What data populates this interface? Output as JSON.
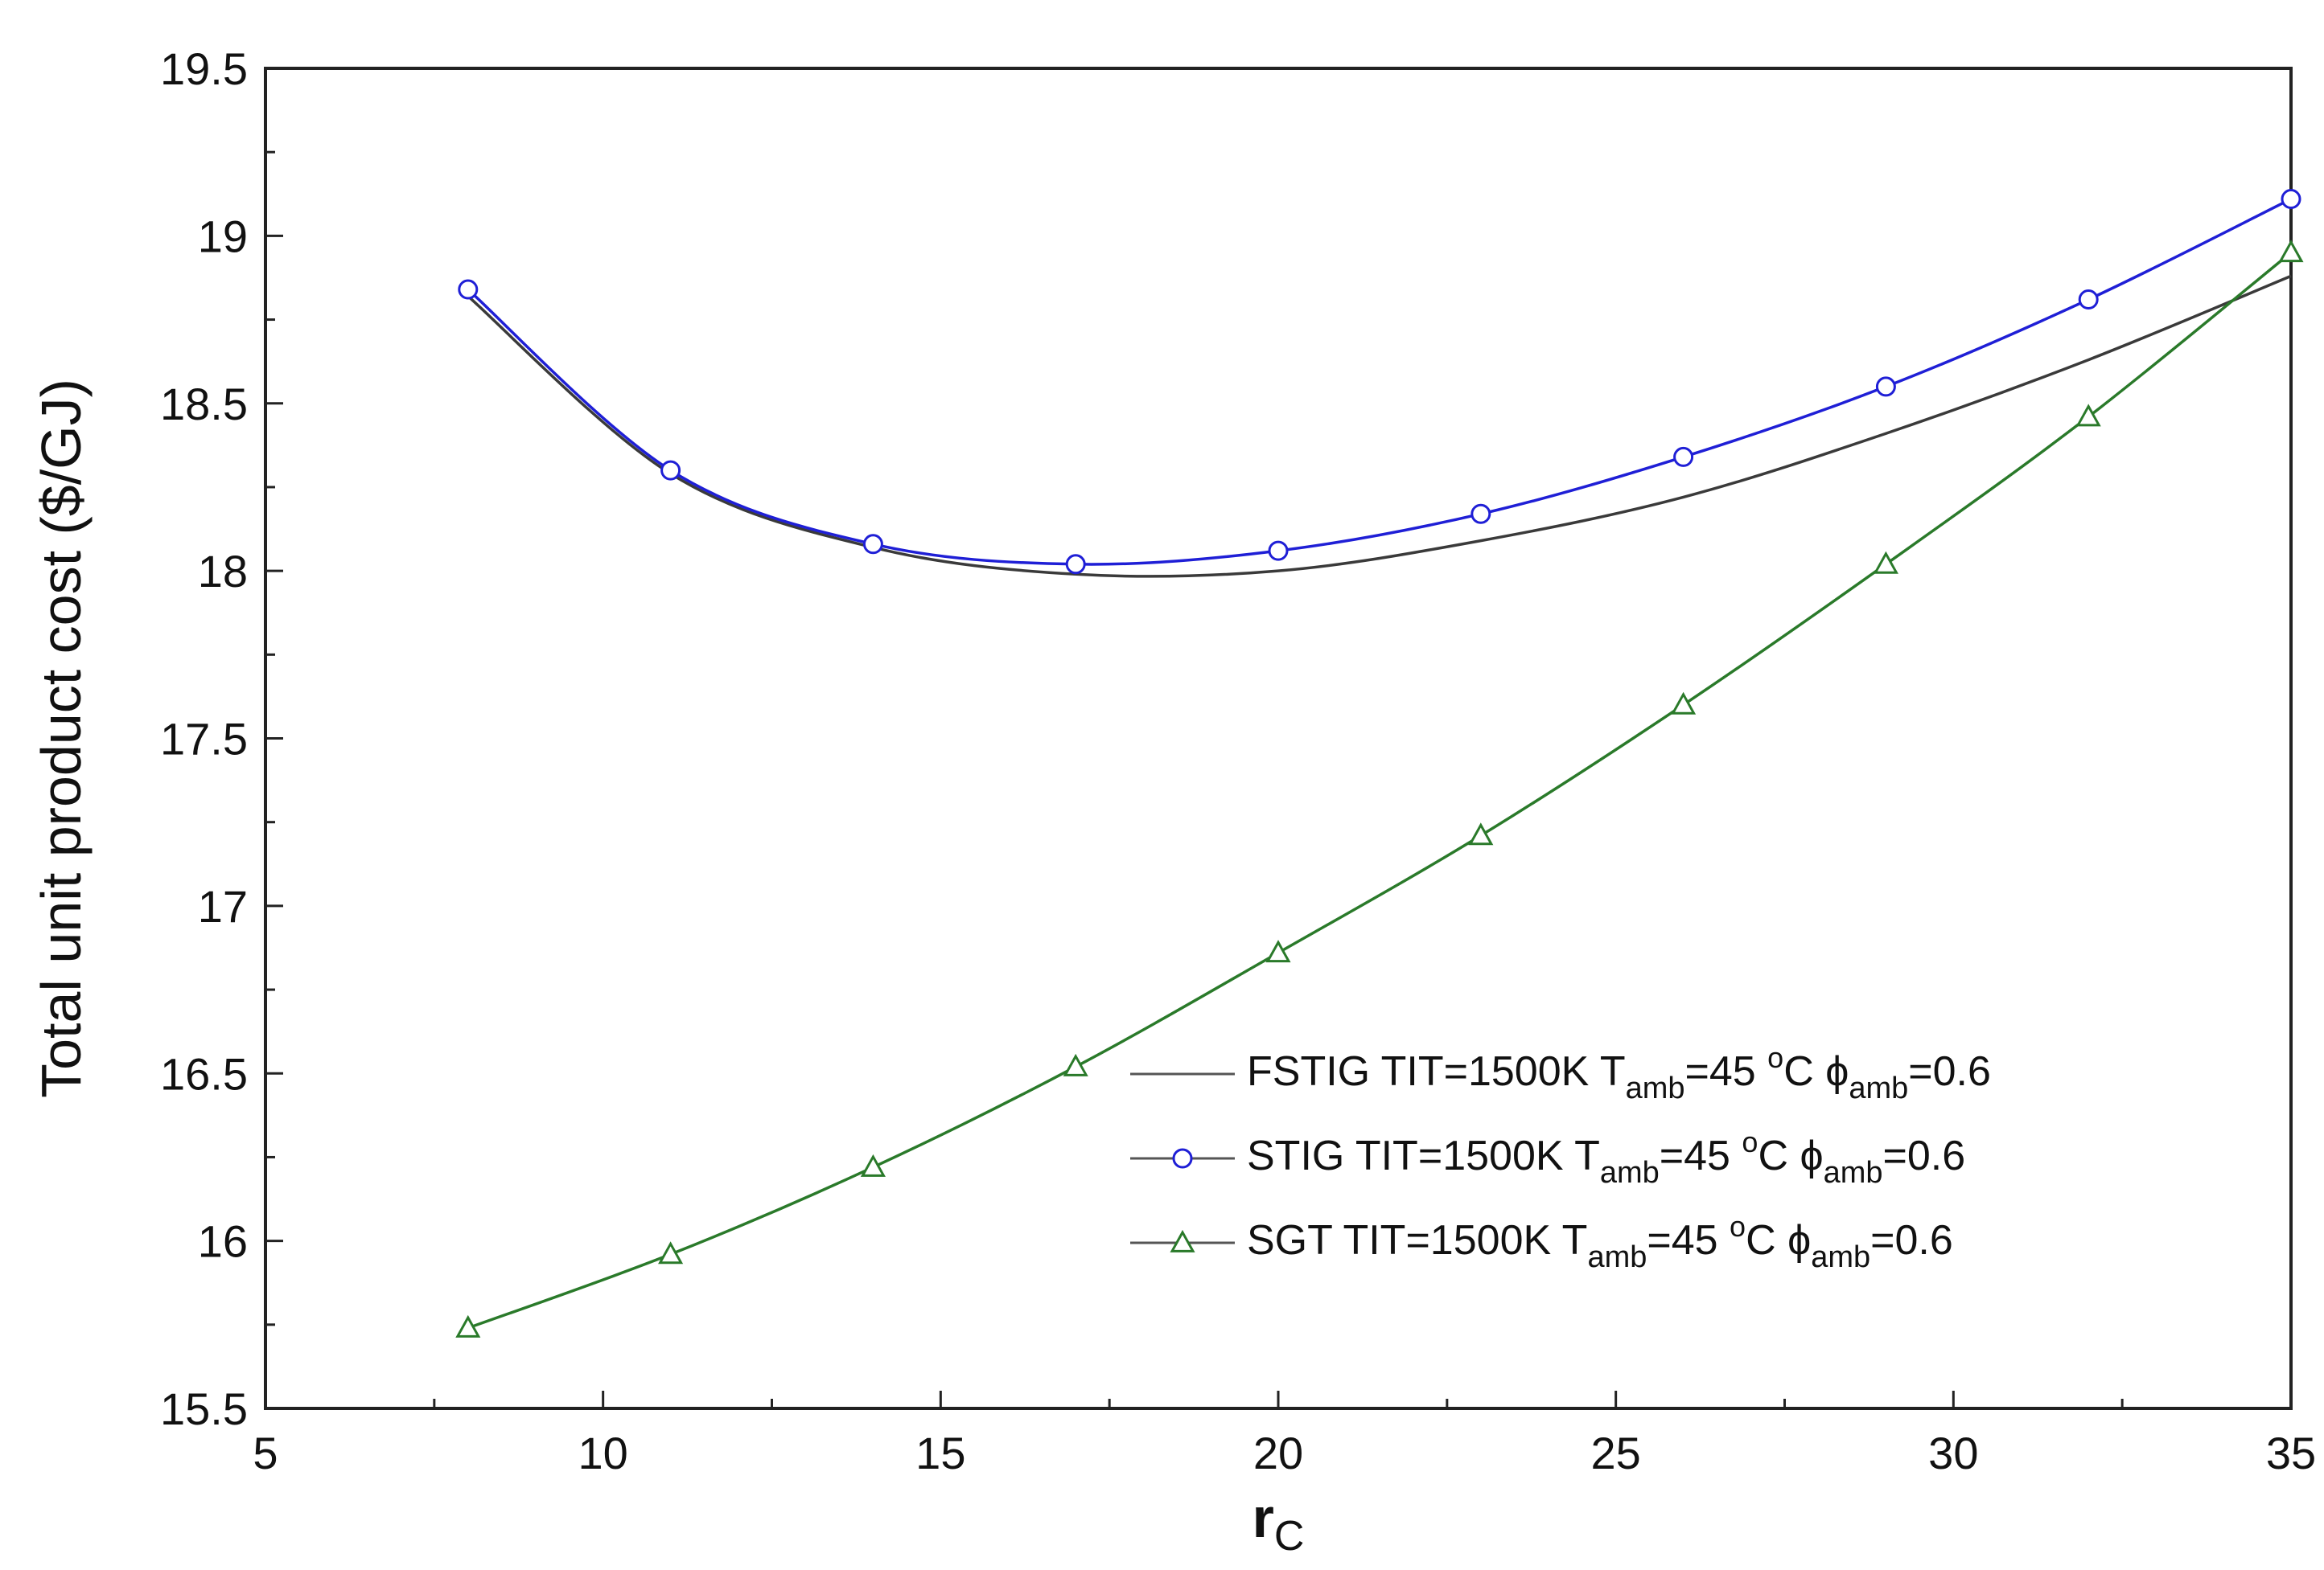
{
  "chart_data": {
    "type": "line",
    "xlabel_main": "r",
    "xlabel_sub": "C",
    "ylabel": "Total unit product cost ($/GJ)",
    "xlim": [
      5,
      35
    ],
    "ylim": [
      15.5,
      19.5
    ],
    "x_major_ticks": [
      5,
      10,
      15,
      20,
      25,
      30,
      35
    ],
    "x_tick_labels": [
      "5",
      "10",
      "15",
      "20",
      "25",
      "30",
      "35"
    ],
    "y_major_ticks": [
      15.5,
      16,
      16.5,
      17,
      17.5,
      18,
      18.5,
      19,
      19.5
    ],
    "y_tick_labels": [
      "15.5",
      "16",
      "16.5",
      "17",
      "17.5",
      "18",
      "18.5",
      "19",
      "19.5"
    ],
    "grid": false,
    "legend_position": "bottom-right",
    "series": [
      {
        "name_parts": [
          "FSTIG TIT=1500K T",
          "amb",
          "=45 ",
          "o",
          "C  ",
          "ϕ",
          "amb",
          "=0.6"
        ],
        "color": "#3a3a3a",
        "marker": "none",
        "x": [
          8,
          11,
          14,
          17,
          20,
          23,
          26,
          29,
          32,
          35
        ],
        "y": [
          18.82,
          18.29,
          18.07,
          17.99,
          18.0,
          18.09,
          18.22,
          18.41,
          18.63,
          18.88
        ]
      },
      {
        "name_parts": [
          "STIG TIT=1500K T",
          "amb",
          "=45 ",
          "o",
          "C  ",
          "ϕ",
          "amb",
          "=0.6"
        ],
        "color": "#1f1fd6",
        "marker": "circle",
        "x": [
          8,
          11,
          14,
          17,
          20,
          23,
          26,
          29,
          32,
          35
        ],
        "y": [
          18.84,
          18.3,
          18.08,
          18.02,
          18.06,
          18.17,
          18.34,
          18.55,
          18.81,
          19.11
        ]
      },
      {
        "name_parts": [
          "SGT TIT=1500K T",
          "amb",
          "=45 ",
          "o",
          "C  ",
          "ϕ",
          "amb",
          "=0.6"
        ],
        "color": "#2a7a2a",
        "marker": "triangle",
        "x": [
          8,
          11,
          14,
          17,
          20,
          23,
          26,
          29,
          32,
          35
        ],
        "y": [
          15.74,
          15.96,
          16.22,
          16.52,
          16.86,
          17.21,
          17.6,
          18.02,
          18.46,
          18.95
        ]
      }
    ]
  }
}
